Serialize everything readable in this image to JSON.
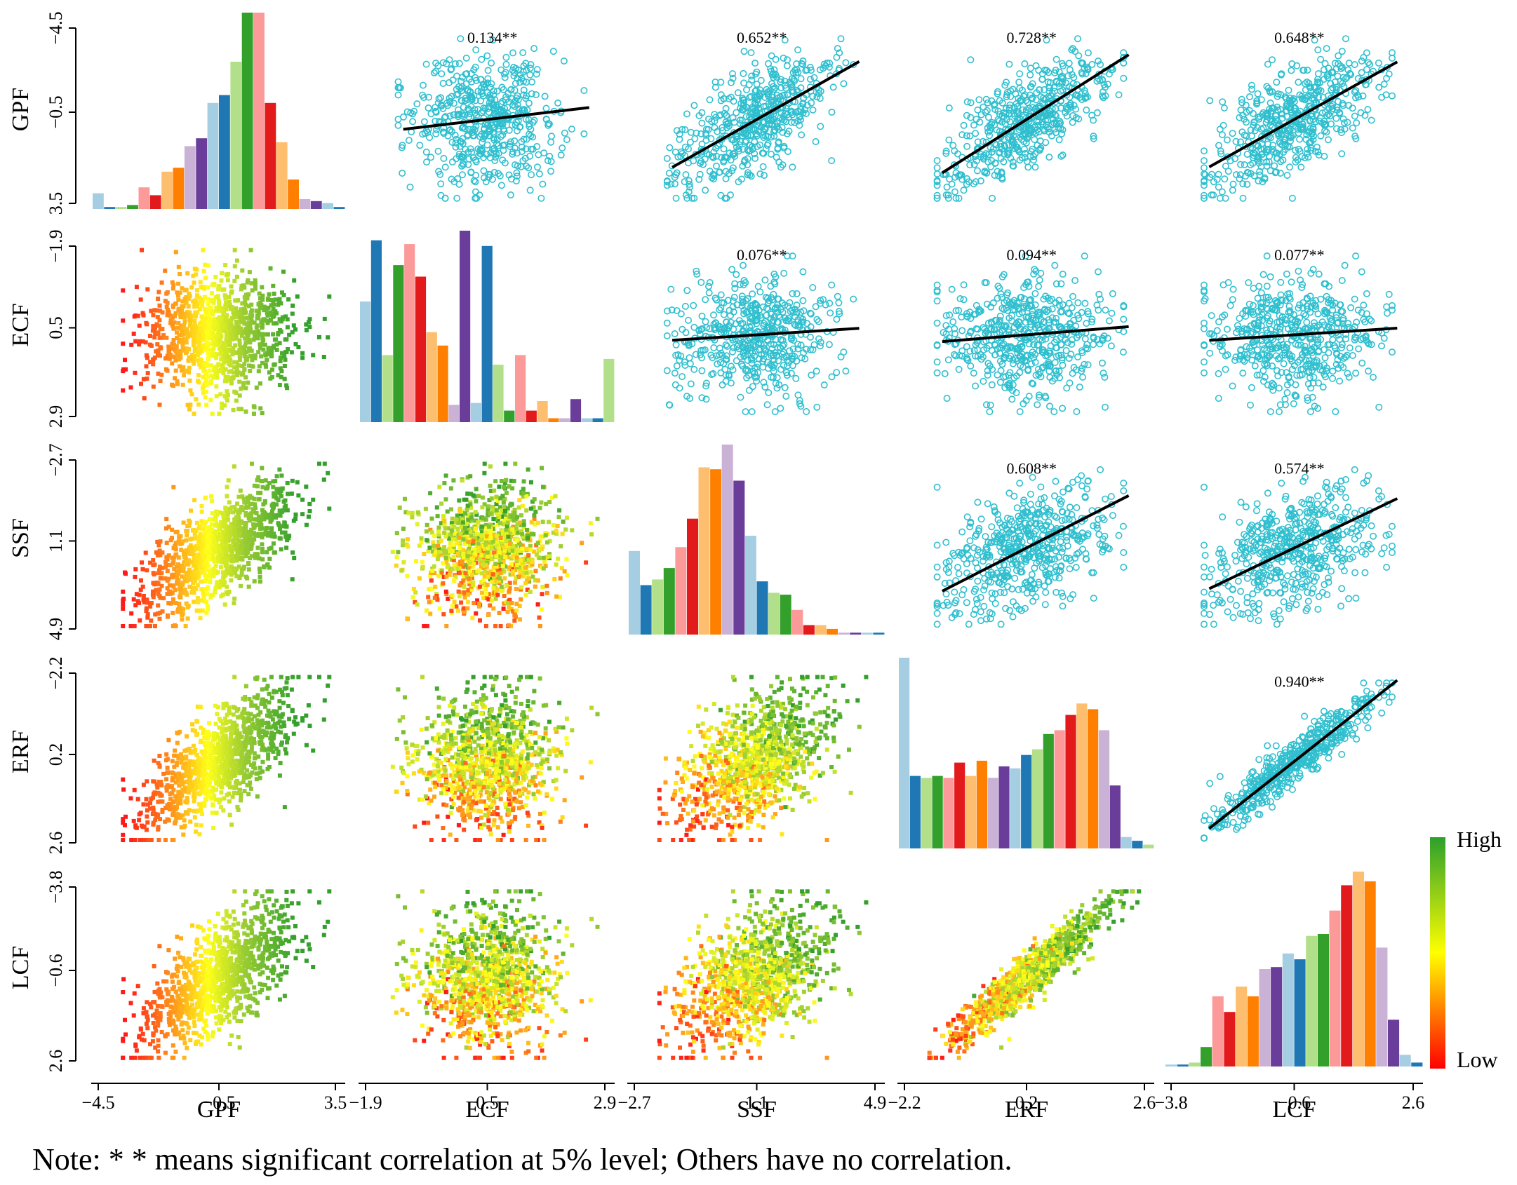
{
  "chart_data": {
    "type": "scatter-matrix",
    "variables": [
      "GPF",
      "ECF",
      "SSF",
      "ERF",
      "LCF"
    ],
    "axis_ticks": {
      "GPF": [
        "-4.5",
        "-0.5",
        "3.5"
      ],
      "ECF": [
        "-1.9",
        "0.5",
        "2.9"
      ],
      "SSF": [
        "-2.7",
        "1.1",
        "4.9"
      ],
      "ERF": [
        "-2.2",
        "0.2",
        "2.6"
      ],
      "LCF": [
        "-3.8",
        "-0.6",
        "2.6"
      ]
    },
    "y_axis_ticks": {
      "GPF": [
        "-4.5",
        "-0.5",
        "3.5"
      ],
      "ECF": [
        "-1.9",
        "0.5",
        "2.9"
      ],
      "SSF": [
        "-2.7",
        "1.1",
        "4.9"
      ],
      "ERF": [
        "-2.2",
        "0.2",
        "2.6"
      ],
      "LCF": [
        "-3.8",
        "-0.6",
        "2.6"
      ]
    },
    "axis_ranges": {
      "GPF": [
        -4.5,
        3.5
      ],
      "ECF": [
        -1.9,
        2.9
      ],
      "SSF": [
        -2.7,
        4.9
      ],
      "ERF": [
        -2.2,
        2.6
      ],
      "LCF": [
        -3.8,
        2.6
      ]
    },
    "correlations": [
      {
        "row": "GPF",
        "col": "ECF",
        "label": "0.134**",
        "r": 0.134
      },
      {
        "row": "GPF",
        "col": "SSF",
        "label": "0.652**",
        "r": 0.652
      },
      {
        "row": "GPF",
        "col": "ERF",
        "label": "0.728**",
        "r": 0.728
      },
      {
        "row": "GPF",
        "col": "LCF",
        "label": "0.648**",
        "r": 0.648
      },
      {
        "row": "ECF",
        "col": "SSF",
        "label": "0.076**",
        "r": 0.076
      },
      {
        "row": "ECF",
        "col": "ERF",
        "label": "0.094**",
        "r": 0.094
      },
      {
        "row": "ECF",
        "col": "LCF",
        "label": "0.077**",
        "r": 0.077
      },
      {
        "row": "SSF",
        "col": "ERF",
        "label": "0.608**",
        "r": 0.608
      },
      {
        "row": "SSF",
        "col": "LCF",
        "label": "0.574**",
        "r": 0.574
      },
      {
        "row": "ERF",
        "col": "LCF",
        "label": "0.940**",
        "r": 0.94
      }
    ],
    "histograms": {
      "GPF": [
        0.08,
        0.01,
        0.01,
        0.02,
        0.11,
        0.07,
        0.19,
        0.21,
        0.32,
        0.36,
        0.54,
        0.58,
        0.75,
        1.0,
        1.0,
        0.54,
        0.34,
        0.15,
        0.05,
        0.04,
        0.03,
        0.01
      ],
      "ECF": [
        0.63,
        0.95,
        0.35,
        0.82,
        0.93,
        0.76,
        0.47,
        0.4,
        0.09,
        1.0,
        0.1,
        0.92,
        0.3,
        0.06,
        0.35,
        0.06,
        0.11,
        0.02,
        0.02,
        0.12,
        0.02,
        0.02,
        0.33
      ],
      "SSF": [
        0.44,
        0.26,
        0.29,
        0.35,
        0.46,
        0.61,
        0.88,
        0.87,
        1.0,
        0.81,
        0.52,
        0.28,
        0.22,
        0.21,
        0.13,
        0.05,
        0.05,
        0.03,
        0.01,
        0.01,
        0.01,
        0.01
      ],
      "ERF": [
        1.0,
        0.38,
        0.37,
        0.38,
        0.37,
        0.45,
        0.38,
        0.46,
        0.37,
        0.43,
        0.42,
        0.49,
        0.52,
        0.6,
        0.62,
        0.7,
        0.76,
        0.73,
        0.62,
        0.33,
        0.06,
        0.04,
        0.02
      ],
      "LCF": [
        0.01,
        0.01,
        0.02,
        0.1,
        0.36,
        0.28,
        0.41,
        0.36,
        0.5,
        0.51,
        0.58,
        0.55,
        0.67,
        0.68,
        0.8,
        0.93,
        1.0,
        0.95,
        0.61,
        0.24,
        0.06,
        0.02
      ]
    },
    "colorbar": {
      "high_label": "High",
      "low_label": "Low",
      "high_color": "#2ca02c",
      "mid_color": "#ffff00",
      "low_color": "#ff0000"
    },
    "upper_marker_color": "#2fbfcf",
    "regression_line_color": "#000000",
    "histogram_palette": [
      "#a6cee3",
      "#1f78b4",
      "#b2df8a",
      "#33a02c",
      "#fb9a99",
      "#e31a1c",
      "#fdbf6f",
      "#ff7f00",
      "#cab2d6",
      "#6a3d9a"
    ]
  },
  "note": "Note: * * means significant correlation at 5% level; Others have no correlation."
}
